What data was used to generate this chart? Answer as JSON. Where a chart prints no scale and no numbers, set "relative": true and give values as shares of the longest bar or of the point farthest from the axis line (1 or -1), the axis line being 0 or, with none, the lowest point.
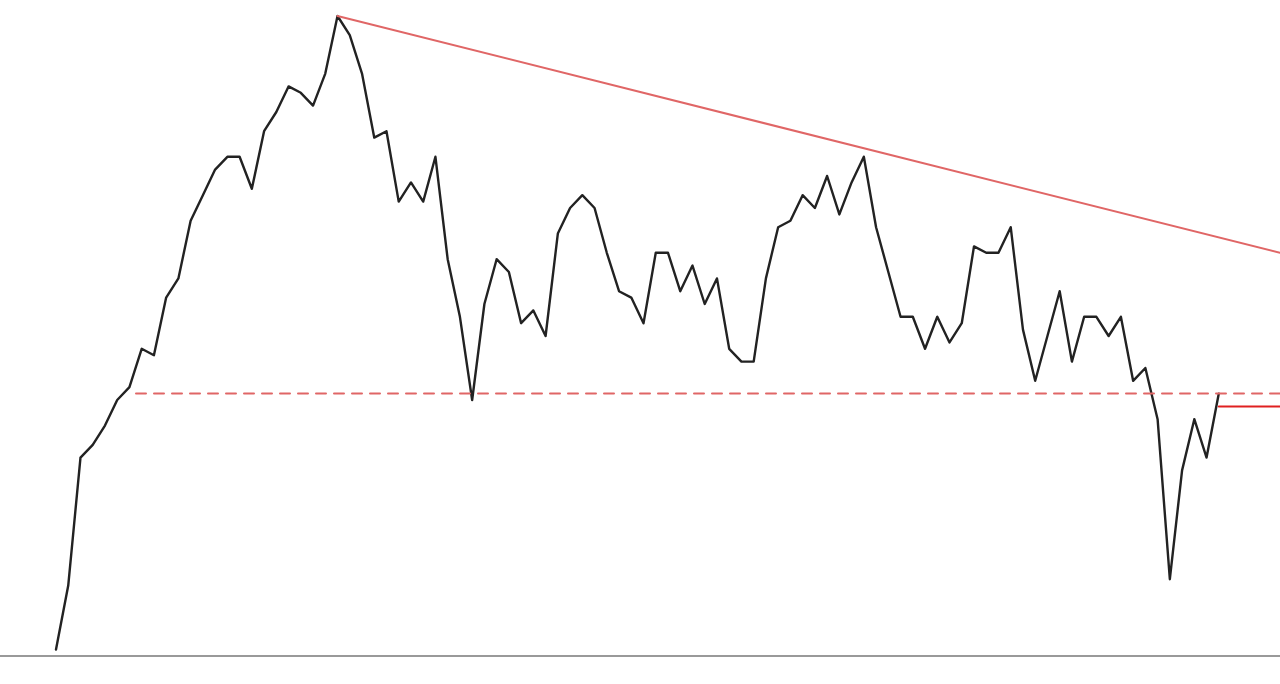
{
  "chart_data": {
    "type": "line",
    "relative": true,
    "categories": [
      null,
      null,
      null,
      null,
      null,
      null,
      null,
      null,
      null,
      null,
      null,
      null,
      null,
      null,
      null,
      null,
      null,
      null,
      null,
      null,
      null,
      null,
      null,
      null,
      null,
      null,
      null,
      null,
      null,
      null,
      null,
      null,
      null,
      null,
      null,
      null,
      null,
      null,
      null,
      null,
      null,
      null,
      null,
      null,
      null,
      null,
      null,
      null,
      null,
      null,
      null,
      null,
      null,
      null,
      null,
      null,
      null,
      null,
      null,
      null,
      null,
      null,
      null,
      null,
      null,
      null,
      null,
      null,
      null,
      null,
      null,
      null,
      null,
      null,
      null,
      null,
      null,
      null,
      null,
      null,
      null,
      null,
      null,
      null,
      null,
      null,
      null,
      null,
      null,
      null,
      null,
      null,
      null,
      null,
      null,
      null,
      null,
      null,
      null,
      null,
      null
    ],
    "series": [
      {
        "color": "#222222",
        "line_style": "solid",
        "values": [
          0.01,
          0.11,
          0.31,
          0.33,
          0.36,
          0.4,
          0.42,
          0.48,
          0.47,
          0.56,
          0.59,
          0.68,
          0.72,
          0.76,
          0.78,
          0.78,
          0.73,
          0.82,
          0.85,
          0.89,
          0.88,
          0.86,
          0.91,
          1,
          0.97,
          0.91,
          0.81,
          0.82,
          0.71,
          0.74,
          0.71,
          0.78,
          0.62,
          0.53,
          0.4,
          0.55,
          0.62,
          0.6,
          0.52,
          0.54,
          0.5,
          0.66,
          0.7,
          0.72,
          0.7,
          0.63,
          0.57,
          0.56,
          0.52,
          0.63,
          0.63,
          0.57,
          0.61,
          0.55,
          0.59,
          0.48,
          0.46,
          0.46,
          0.59,
          0.67,
          0.68,
          0.72,
          0.7,
          0.75,
          0.69,
          0.74,
          0.78,
          0.67,
          0.6,
          0.53,
          0.53,
          0.48,
          0.53,
          0.49,
          0.52,
          0.64,
          0.63,
          0.63,
          0.67,
          0.51,
          0.43,
          0.5,
          0.57,
          0.46,
          0.53,
          0.53,
          0.5,
          0.53,
          0.43,
          0.45,
          0.37,
          0.12,
          0.29,
          0.37,
          0.31,
          0.41,
          null,
          null,
          null,
          null,
          null
        ]
      },
      {
        "type": "line",
        "color": "#e06666",
        "line_style": "solid",
        "values": [
          null,
          null,
          null,
          null,
          null,
          null,
          null,
          null,
          null,
          null,
          null,
          null,
          null,
          null,
          null,
          null,
          null,
          null,
          null,
          null,
          null,
          null,
          null,
          1,
          null,
          null,
          null,
          null,
          null,
          null,
          null,
          null,
          null,
          null,
          null,
          null,
          null,
          null,
          null,
          null,
          null,
          null,
          null,
          null,
          null,
          null,
          null,
          null,
          null,
          null,
          null,
          null,
          null,
          null,
          null,
          null,
          null,
          null,
          null,
          null,
          null,
          null,
          null,
          null,
          null,
          null,
          null,
          null,
          null,
          null,
          null,
          null,
          null,
          null,
          null,
          null,
          null,
          null,
          null,
          null,
          null,
          null,
          null,
          null,
          null,
          null,
          null,
          null,
          null,
          null,
          null,
          null,
          null,
          null,
          null,
          null,
          null,
          null,
          null,
          null,
          0.63
        ]
      },
      {
        "type": "line",
        "color": "#e06666",
        "line_style": "dashed",
        "values": [
          null,
          null,
          null,
          null,
          null,
          null,
          0.41,
          null,
          null,
          null,
          null,
          null,
          null,
          null,
          null,
          null,
          null,
          null,
          null,
          null,
          null,
          null,
          null,
          null,
          null,
          null,
          null,
          null,
          null,
          null,
          null,
          null,
          null,
          null,
          null,
          null,
          null,
          null,
          null,
          null,
          null,
          null,
          null,
          null,
          null,
          null,
          null,
          null,
          null,
          null,
          null,
          null,
          null,
          null,
          null,
          null,
          null,
          null,
          null,
          null,
          null,
          null,
          null,
          null,
          null,
          null,
          null,
          null,
          null,
          null,
          null,
          null,
          null,
          null,
          null,
          null,
          null,
          null,
          null,
          null,
          null,
          null,
          null,
          null,
          null,
          null,
          null,
          null,
          null,
          null,
          null,
          null,
          null,
          null,
          null,
          null,
          null,
          null,
          null,
          null,
          0.41
        ]
      },
      {
        "type": "line",
        "color": "#e02020",
        "line_style": "solid",
        "values": [
          null,
          null,
          null,
          null,
          null,
          null,
          null,
          null,
          null,
          null,
          null,
          null,
          null,
          null,
          null,
          null,
          null,
          null,
          null,
          null,
          null,
          null,
          null,
          null,
          null,
          null,
          null,
          null,
          null,
          null,
          null,
          null,
          null,
          null,
          null,
          null,
          null,
          null,
          null,
          null,
          null,
          null,
          null,
          null,
          null,
          null,
          null,
          null,
          null,
          null,
          null,
          null,
          null,
          null,
          null,
          null,
          null,
          null,
          null,
          null,
          null,
          null,
          null,
          null,
          null,
          null,
          null,
          null,
          null,
          null,
          null,
          null,
          null,
          null,
          null,
          null,
          null,
          null,
          null,
          null,
          null,
          null,
          null,
          null,
          null,
          null,
          null,
          null,
          null,
          null,
          null,
          null,
          null,
          null,
          null,
          0.39,
          null,
          null,
          null,
          null,
          0.39
        ]
      }
    ]
  }
}
